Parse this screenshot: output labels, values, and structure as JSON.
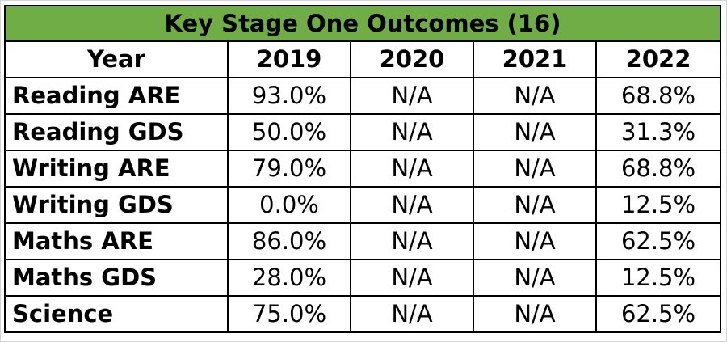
{
  "table": {
    "title": "Key Stage One Outcomes (16)",
    "header": {
      "label": "Year",
      "years": [
        "2019",
        "2020",
        "2021",
        "2022"
      ]
    },
    "rows": [
      {
        "label": "Reading ARE",
        "values": [
          "93.0%",
          "N/A",
          "N/A",
          "68.8%"
        ]
      },
      {
        "label": "Reading GDS",
        "values": [
          "50.0%",
          "N/A",
          "N/A",
          "31.3%"
        ]
      },
      {
        "label": "Writing ARE",
        "values": [
          "79.0%",
          "N/A",
          "N/A",
          "68.8%"
        ]
      },
      {
        "label": "Writing GDS",
        "values": [
          "0.0%",
          "N/A",
          "N/A",
          "12.5%"
        ]
      },
      {
        "label": "Maths ARE",
        "values": [
          "86.0%",
          "N/A",
          "N/A",
          "62.5%"
        ]
      },
      {
        "label": "Maths GDS",
        "values": [
          "28.0%",
          "N/A",
          "N/A",
          "12.5%"
        ]
      },
      {
        "label": "Science",
        "values": [
          "75.0%",
          "N/A",
          "N/A",
          "62.5%"
        ]
      }
    ]
  },
  "colors": {
    "title_fill": "#70ad47",
    "border": "#000000",
    "gridline": "#d4d4d4"
  }
}
